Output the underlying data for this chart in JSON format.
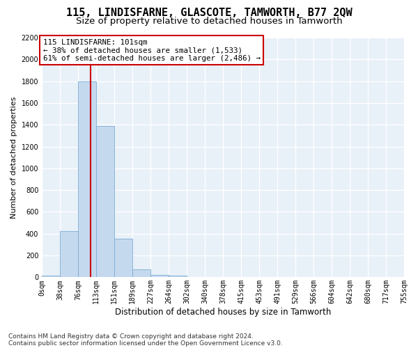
{
  "title": "115, LINDISFARNE, GLASCOTE, TAMWORTH, B77 2QW",
  "subtitle": "Size of property relative to detached houses in Tamworth",
  "xlabel": "Distribution of detached houses by size in Tamworth",
  "ylabel": "Number of detached properties",
  "bar_color": "#c5d9ee",
  "bar_edge_color": "#7aadd4",
  "background_color": "#e8f0f8",
  "grid_color": "#ffffff",
  "bin_labels": [
    "0sqm",
    "38sqm",
    "76sqm",
    "113sqm",
    "151sqm",
    "189sqm",
    "227sqm",
    "264sqm",
    "302sqm",
    "340sqm",
    "378sqm",
    "415sqm",
    "453sqm",
    "491sqm",
    "529sqm",
    "566sqm",
    "604sqm",
    "642sqm",
    "680sqm",
    "717sqm",
    "755sqm"
  ],
  "bar_heights": [
    15,
    425,
    1800,
    1390,
    355,
    70,
    22,
    15,
    0,
    0,
    0,
    0,
    0,
    0,
    0,
    0,
    0,
    0,
    0,
    0
  ],
  "n_bins": 20,
  "bin_width": 37.75,
  "property_size": 101,
  "property_label": "115 LINDISFARNE: 101sqm",
  "annotation_line1": "← 38% of detached houses are smaller (1,533)",
  "annotation_line2": "61% of semi-detached houses are larger (2,486) →",
  "vline_color": "#cc0000",
  "ylim_max": 2200,
  "ytick_interval": 200,
  "footnote1": "Contains HM Land Registry data © Crown copyright and database right 2024.",
  "footnote2": "Contains public sector information licensed under the Open Government Licence v3.0.",
  "title_fontsize": 11,
  "subtitle_fontsize": 9.5,
  "ylabel_fontsize": 8,
  "xlabel_fontsize": 8.5,
  "tick_fontsize": 7,
  "annotation_fontsize": 7.8,
  "footnote_fontsize": 6.5
}
